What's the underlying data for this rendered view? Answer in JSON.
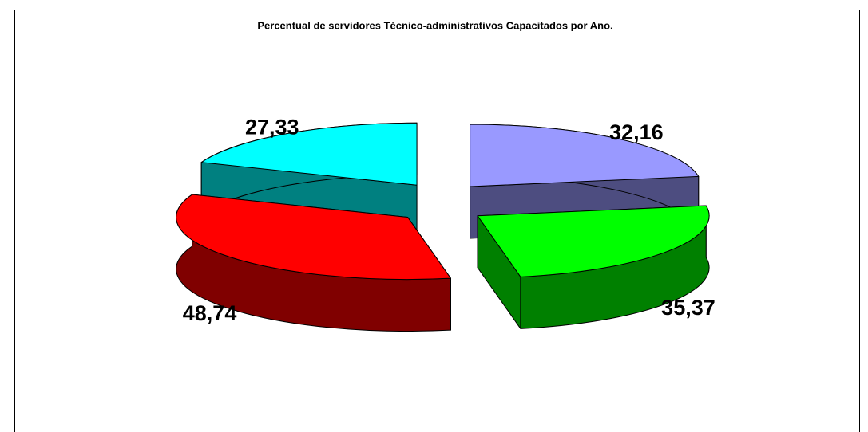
{
  "chart_data": {
    "type": "pie3d",
    "title": "Percentual de servidores Técnico-administrativos Capacitados por Ano.",
    "values": [
      32.16,
      35.37,
      48.74,
      27.33
    ],
    "value_labels": [
      "32,16",
      "35,37",
      "48,74",
      "27,33"
    ],
    "colors": [
      "#9999ff",
      "#00ff00",
      "#ff0000",
      "#00ffff"
    ]
  }
}
